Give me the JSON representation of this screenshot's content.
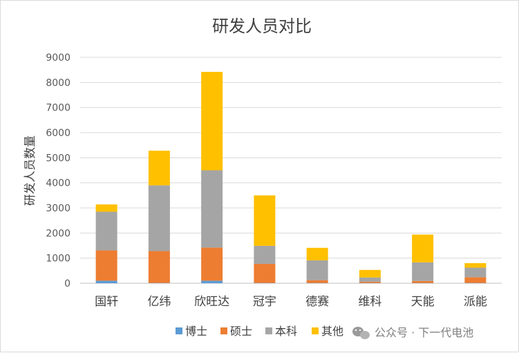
{
  "chart_data": {
    "type": "bar",
    "stacked": true,
    "title": "研发人员对比",
    "xlabel": "",
    "ylabel": "研发人员数量",
    "ylim": [
      0,
      9000
    ],
    "yticks": [
      0,
      1000,
      2000,
      3000,
      4000,
      5000,
      6000,
      7000,
      8000,
      9000
    ],
    "grid": true,
    "legend_position": "bottom",
    "categories": [
      "国轩",
      "亿纬",
      "欣旺达",
      "冠宇",
      "德赛",
      "维科",
      "天能",
      "派能"
    ],
    "series": [
      {
        "name": "博士",
        "color": "#5b9bd5",
        "values": [
          100,
          10,
          100,
          10,
          10,
          10,
          10,
          10
        ]
      },
      {
        "name": "硕士",
        "color": "#ed7d31",
        "values": [
          1210,
          1270,
          1320,
          760,
          110,
          50,
          80,
          230
        ]
      },
      {
        "name": "本科",
        "color": "#a5a5a5",
        "values": [
          1540,
          2620,
          3080,
          720,
          790,
          170,
          740,
          380
        ]
      },
      {
        "name": "其他",
        "color": "#ffc000",
        "values": [
          290,
          1380,
          3920,
          2010,
          500,
          300,
          1110,
          180
        ]
      }
    ]
  },
  "watermark": {
    "icon": "wechat-icon",
    "text": "公众号 · 下一代电池"
  }
}
